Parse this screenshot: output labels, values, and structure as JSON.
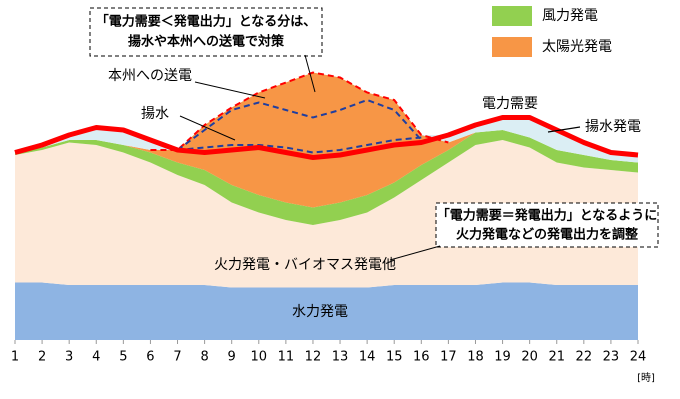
{
  "chart_data": {
    "type": "stacked-area",
    "x": [
      1,
      2,
      3,
      4,
      5,
      6,
      7,
      8,
      9,
      10,
      11,
      12,
      13,
      14,
      15,
      16,
      17,
      18,
      19,
      20,
      21,
      22,
      23,
      24
    ],
    "xlim": [
      1,
      24
    ],
    "xticks": [
      1,
      2,
      3,
      4,
      5,
      6,
      7,
      8,
      9,
      10,
      11,
      12,
      13,
      14,
      15,
      16,
      17,
      18,
      19,
      20,
      21,
      22,
      23,
      24
    ],
    "x_unit": "[時]",
    "ylim": [
      0,
      110
    ],
    "series": [
      {
        "name": "水力発電",
        "color": "#8eb4e3",
        "in_legend": false,
        "values": [
          23,
          23,
          22,
          22,
          22,
          22,
          22,
          22,
          21,
          21,
          21,
          21,
          21,
          21,
          22,
          22,
          22,
          22,
          23,
          23,
          22,
          22,
          22,
          22
        ]
      },
      {
        "name": "火力発電・バイオマス発電他",
        "color": "#fde9d9",
        "in_legend": false,
        "values": [
          51,
          53,
          57,
          56,
          53,
          49,
          44,
          40,
          34,
          30,
          27,
          25,
          27,
          30,
          35,
          42,
          49,
          56,
          57,
          54,
          49,
          47,
          46,
          45
        ]
      },
      {
        "name": "風力発電",
        "color": "#92d050",
        "in_legend": true,
        "values": [
          1,
          1,
          1,
          2,
          3,
          4,
          5,
          6,
          7,
          7,
          7,
          7,
          7,
          7,
          6,
          6,
          5,
          5,
          4,
          4,
          5,
          5,
          4,
          4
        ]
      },
      {
        "name": "太陽光発電",
        "color": "#f79646",
        "in_legend": true,
        "values": [
          0,
          0,
          0,
          0,
          0,
          1,
          5,
          18,
          31,
          41,
          48,
          54,
          50,
          41,
          33,
          12,
          3,
          0,
          0,
          0,
          0,
          0,
          0,
          0
        ]
      },
      {
        "name": "揚水発電",
        "color": "#dbeef4",
        "in_legend": false,
        "values": [
          1,
          2,
          2,
          5,
          6,
          5,
          0,
          0,
          0,
          0,
          0,
          0,
          0,
          0,
          0,
          0,
          3,
          3,
          5,
          8,
          8,
          5,
          3,
          3
        ]
      }
    ],
    "demand": {
      "name": "電力需要",
      "color": "#ff0000",
      "values": [
        75,
        78,
        82,
        85,
        84,
        80,
        76,
        75,
        76,
        77,
        75,
        73,
        74,
        76,
        78,
        79,
        82,
        86,
        89,
        89,
        84,
        79,
        75,
        74
      ]
    },
    "dashed_lines": [
      {
        "color": "#1f3ea0",
        "values": [
          null,
          null,
          null,
          null,
          null,
          null,
          76,
          77,
          78,
          78,
          77,
          75,
          76,
          78,
          80,
          81,
          null,
          null,
          null,
          null,
          null,
          null,
          null,
          null
        ]
      },
      {
        "color": "#1f3ea0",
        "values": [
          null,
          null,
          null,
          null,
          null,
          null,
          76,
          84,
          92,
          95,
          92,
          89,
          92,
          96,
          92,
          80,
          null,
          null,
          null,
          null,
          null,
          null,
          null,
          null
        ]
      }
    ],
    "labels": [
      "本州への送電",
      "揚水"
    ],
    "annotations": [
      {
        "lines": [
          "「電力需要＜発電出力」となる分は、",
          "揚水や本州への送電で対策"
        ]
      },
      {
        "lines": [
          "「電力需要＝発電出力」となるように",
          "火力発電などの発電出力を調整"
        ]
      }
    ]
  }
}
